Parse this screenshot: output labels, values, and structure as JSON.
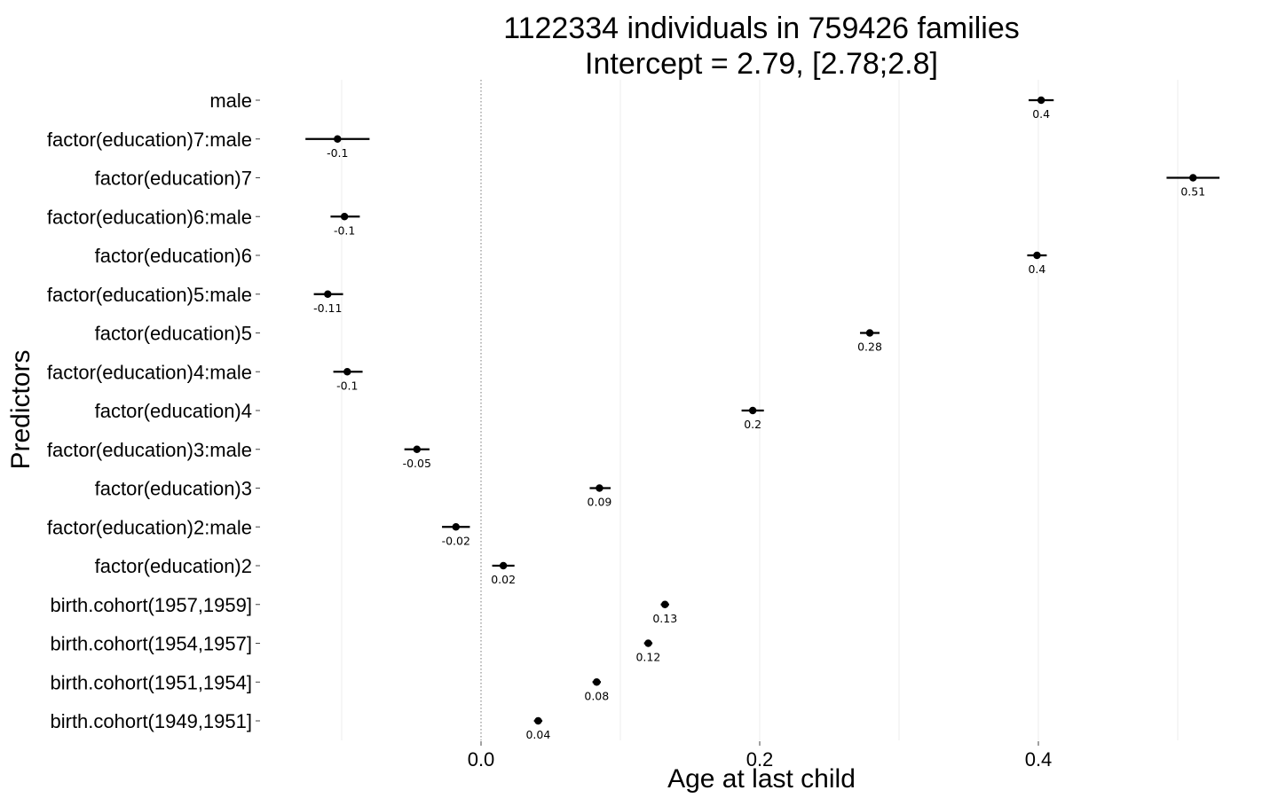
{
  "chart_data": {
    "type": "scatter",
    "subtype": "coefficient-plot-with-confidence-intervals",
    "title": "1122334 individuals in 759426 families",
    "subtitle": "Intercept = 2.79, [2.78;2.8]",
    "xlabel": "Age at last child",
    "ylabel": "Predictors",
    "xlim": [
      -0.26,
      0.55
    ],
    "x_ticks": [
      0.0,
      0.2,
      0.4
    ],
    "x_tick_labels": [
      "0.0",
      "0.2",
      "0.4"
    ],
    "reference_line_x": 0.0,
    "grid": "vertical-major-faint",
    "legend": "none",
    "predictors": [
      {
        "label": "male",
        "estimate": 0.402,
        "lower": 0.393,
        "upper": 0.411,
        "data_label": "0.4"
      },
      {
        "label": "factor(education)7:male",
        "estimate": -0.103,
        "lower": -0.126,
        "upper": -0.08,
        "data_label": "-0.1"
      },
      {
        "label": "factor(education)7",
        "estimate": 0.511,
        "lower": 0.492,
        "upper": 0.53,
        "data_label": "0.51"
      },
      {
        "label": "factor(education)6:male",
        "estimate": -0.098,
        "lower": -0.108,
        "upper": -0.087,
        "data_label": "-0.1"
      },
      {
        "label": "factor(education)6",
        "estimate": 0.399,
        "lower": 0.392,
        "upper": 0.406,
        "data_label": "0.4"
      },
      {
        "label": "factor(education)5:male",
        "estimate": -0.11,
        "lower": -0.12,
        "upper": -0.099,
        "data_label": "-0.11"
      },
      {
        "label": "factor(education)5",
        "estimate": 0.279,
        "lower": 0.272,
        "upper": 0.286,
        "data_label": "0.28"
      },
      {
        "label": "factor(education)4:male",
        "estimate": -0.096,
        "lower": -0.106,
        "upper": -0.085,
        "data_label": "-0.1"
      },
      {
        "label": "factor(education)4",
        "estimate": 0.195,
        "lower": 0.187,
        "upper": 0.203,
        "data_label": "0.2"
      },
      {
        "label": "factor(education)3:male",
        "estimate": -0.046,
        "lower": -0.055,
        "upper": -0.037,
        "data_label": "-0.05"
      },
      {
        "label": "factor(education)3",
        "estimate": 0.085,
        "lower": 0.078,
        "upper": 0.093,
        "data_label": "0.09"
      },
      {
        "label": "factor(education)2:male",
        "estimate": -0.018,
        "lower": -0.028,
        "upper": -0.008,
        "data_label": "-0.02"
      },
      {
        "label": "factor(education)2",
        "estimate": 0.016,
        "lower": 0.008,
        "upper": 0.024,
        "data_label": "0.02"
      },
      {
        "label": "birth.cohort(1957,1959]",
        "estimate": 0.132,
        "lower": 0.129,
        "upper": 0.135,
        "data_label": "0.13"
      },
      {
        "label": "birth.cohort(1954,1957]",
        "estimate": 0.12,
        "lower": 0.117,
        "upper": 0.123,
        "data_label": "0.12"
      },
      {
        "label": "birth.cohort(1951,1954]",
        "estimate": 0.083,
        "lower": 0.08,
        "upper": 0.086,
        "data_label": "0.08"
      },
      {
        "label": "birth.cohort(1949,1951]",
        "estimate": 0.041,
        "lower": 0.038,
        "upper": 0.044,
        "data_label": "0.04"
      }
    ],
    "colors": {
      "point": "#000000",
      "errorbar": "#000000",
      "reference_line": "#777777",
      "grid": "#ececec",
      "background": "#ffffff"
    }
  }
}
